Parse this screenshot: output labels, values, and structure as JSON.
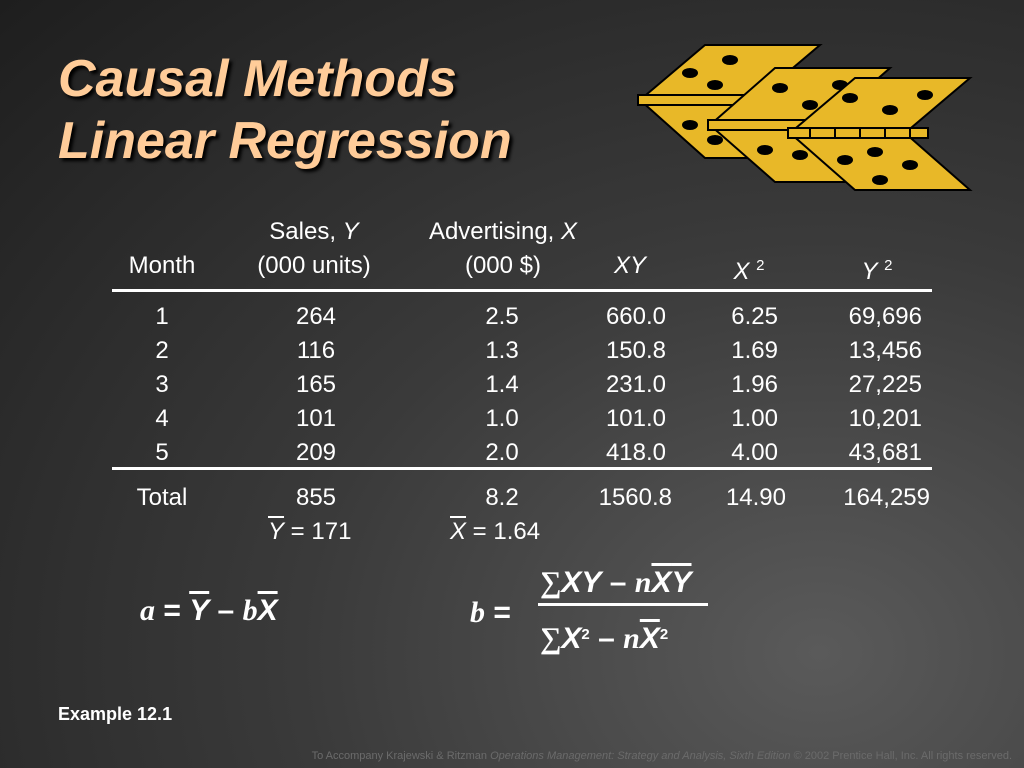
{
  "title": {
    "line1": "Causal Methods",
    "line2": "Linear Regression"
  },
  "table": {
    "headers": {
      "month": "Month",
      "sales_line1": "Sales, ",
      "sales_var": "Y",
      "sales_line2": "(000 units)",
      "adv_line1": "Advertising, ",
      "adv_var": "X",
      "adv_line2": "(000 $)",
      "xy": "XY",
      "x2_base": "X",
      "x2_exp": "2",
      "y2_base": "Y",
      "y2_exp": "2"
    },
    "rows": [
      {
        "month": "1",
        "sales": "264",
        "adv": "2.5",
        "xy": "660.0",
        "x2": "6.25",
        "y2": "69,696"
      },
      {
        "month": "2",
        "sales": "116",
        "adv": "1.3",
        "xy": "150.8",
        "x2": "1.69",
        "y2": "13,456"
      },
      {
        "month": "3",
        "sales": "165",
        "adv": "1.4",
        "xy": "231.0",
        "x2": "1.96",
        "y2": "27,225"
      },
      {
        "month": "4",
        "sales": "101",
        "adv": "1.0",
        "xy": "101.0",
        "x2": "1.00",
        "y2": "10,201"
      },
      {
        "month": "5",
        "sales": "209",
        "adv": "2.0",
        "xy": "418.0",
        "x2": "4.00",
        "y2": "43,681"
      }
    ],
    "total": {
      "label": "Total",
      "sales": "855",
      "adv": "8.2",
      "xy": "1560.8",
      "x2": "14.90",
      "y2": "164,259"
    },
    "means": {
      "y_var": "Y",
      "y_value": " = 171",
      "x_var": "X",
      "x_value": " = 1.64"
    }
  },
  "formulas": {
    "a_lhs": "a",
    "a_eq": " = ",
    "a_ybar": "Y",
    "a_minus": " – ",
    "a_b": "b",
    "a_xbar": "X",
    "b_lhs": "b",
    "b_eq": " = ",
    "sigma": "∑",
    "num_xy": "XY",
    "num_minus": " – ",
    "num_n": "n",
    "num_xbar": "X",
    "num_ybar": "Y",
    "den_x": "X",
    "den_exp": "2",
    "den_minus": " – ",
    "den_n": "n",
    "den_xbar": "X",
    "den_exp2": "2"
  },
  "example": "Example 12.1",
  "footer": {
    "prefix": "To Accompany Krajewski & Ritzman ",
    "book": "Operations Management: Strategy and Analysis, Sixth Edition",
    "suffix": " © 2002 Prentice Hall, Inc. All rights reserved."
  },
  "colors": {
    "title": "#ffcc99",
    "logo_fill": "#e8b828",
    "text": "#ffffff"
  },
  "logo_icon": "hinged-dice-icon"
}
